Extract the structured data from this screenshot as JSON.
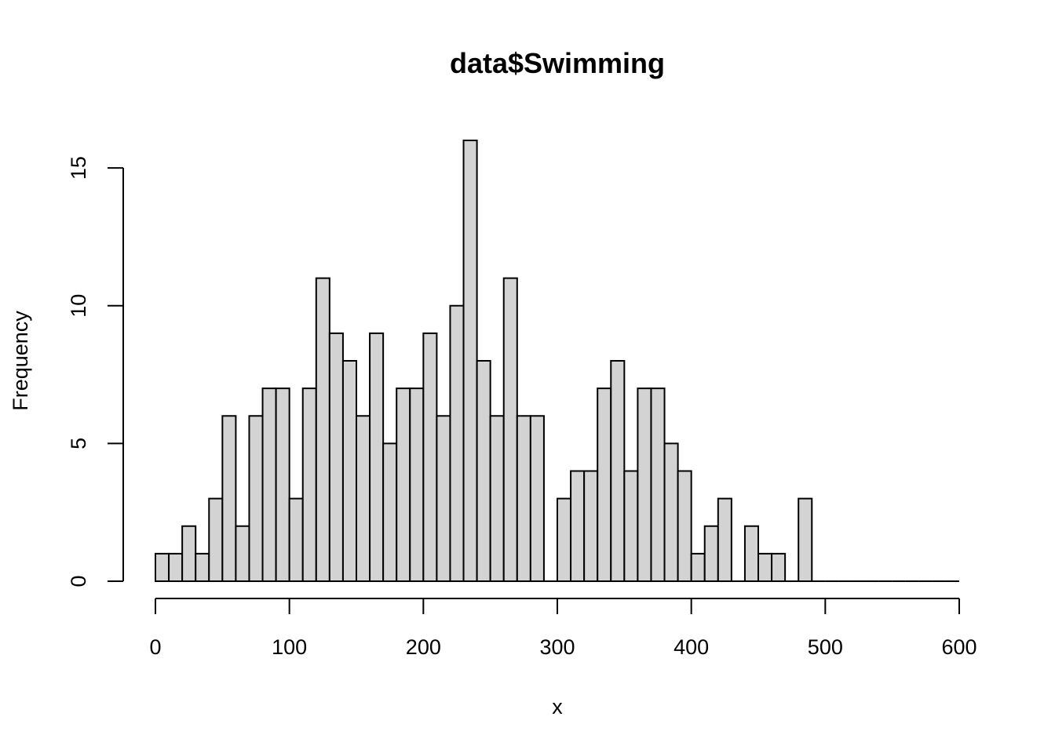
{
  "chart_data": {
    "type": "bar",
    "title": "data$Swimming",
    "xlabel": "x",
    "ylabel": "Frequency",
    "bin_width": 10,
    "x": [
      0,
      10,
      20,
      30,
      40,
      50,
      60,
      70,
      80,
      90,
      100,
      110,
      120,
      130,
      140,
      150,
      160,
      170,
      180,
      190,
      200,
      210,
      220,
      230,
      240,
      250,
      260,
      270,
      280,
      290,
      300,
      310,
      320,
      330,
      340,
      350,
      360,
      370,
      380,
      390,
      400,
      410,
      420,
      430,
      440,
      450,
      460,
      470,
      480,
      490,
      500,
      510,
      520,
      530,
      540,
      550,
      560,
      570,
      580,
      590
    ],
    "values": [
      1,
      1,
      2,
      1,
      3,
      6,
      2,
      6,
      7,
      7,
      3,
      7,
      11,
      9,
      8,
      6,
      9,
      5,
      7,
      7,
      9,
      6,
      10,
      16,
      8,
      6,
      11,
      6,
      6,
      0,
      3,
      4,
      4,
      7,
      8,
      4,
      7,
      7,
      5,
      4,
      1,
      2,
      3,
      0,
      2,
      1,
      1,
      0,
      3,
      0,
      0,
      0,
      0,
      0,
      0,
      0,
      0,
      0,
      0,
      0
    ],
    "xlim": [
      0,
      600
    ],
    "ylim": [
      0,
      16
    ],
    "xticks": [
      "0",
      "100",
      "200",
      "300",
      "400",
      "500",
      "600"
    ],
    "yticks": [
      "0",
      "5",
      "10",
      "15"
    ],
    "bar_color": "#d3d3d3",
    "edge_color": "#000000",
    "grid": false,
    "legend": "none"
  }
}
